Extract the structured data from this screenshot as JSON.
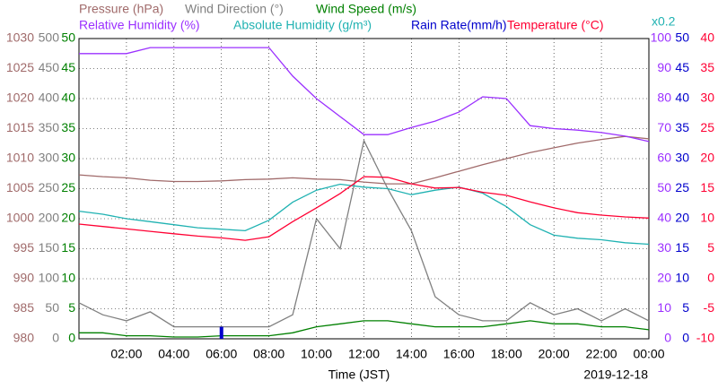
{
  "chart_data": {
    "type": "line",
    "x_label": "Time (JST)",
    "date": "2019-12-18",
    "annotations": [
      "x0.2"
    ],
    "grid": true,
    "x": [
      "00:00",
      "01:00",
      "02:00",
      "03:00",
      "04:00",
      "05:00",
      "06:00",
      "07:00",
      "08:00",
      "09:00",
      "10:00",
      "11:00",
      "12:00",
      "13:00",
      "14:00",
      "15:00",
      "16:00",
      "17:00",
      "18:00",
      "19:00",
      "20:00",
      "21:00",
      "22:00",
      "23:00",
      "00:00"
    ],
    "xticks": [
      "02:00",
      "04:00",
      "06:00",
      "08:00",
      "10:00",
      "12:00",
      "14:00",
      "16:00",
      "18:00",
      "20:00",
      "22:00",
      "00:00"
    ],
    "series": [
      {
        "name": "Pressure (hPa)",
        "color": "#a06a6a",
        "ylim": [
          980,
          1030
        ],
        "yticks": [
          980,
          985,
          990,
          995,
          1000,
          1005,
          1010,
          1015,
          1020,
          1025,
          1030
        ],
        "values": [
          1007.3,
          1007.0,
          1006.8,
          1006.4,
          1006.2,
          1006.2,
          1006.3,
          1006.5,
          1006.6,
          1006.8,
          1006.6,
          1006.5,
          1006.1,
          1005.8,
          1005.8,
          1006.8,
          1007.9,
          1009.0,
          1010.0,
          1011.0,
          1011.8,
          1012.6,
          1013.2,
          1013.7,
          1013.3
        ]
      },
      {
        "name": "Wind Direction (°)",
        "color": "#808080",
        "ylim": [
          0,
          500
        ],
        "yticks": [
          0,
          50,
          100,
          150,
          200,
          250,
          300,
          350,
          400,
          450,
          500
        ],
        "values": [
          60,
          40,
          30,
          45,
          20,
          20,
          20,
          20,
          20,
          40,
          200,
          150,
          330,
          250,
          180,
          70,
          40,
          30,
          30,
          60,
          40,
          50,
          30,
          50,
          30
        ]
      },
      {
        "name": "Wind Speed (m/s)",
        "color": "#008000",
        "ylim": [
          0,
          50
        ],
        "yticks": [
          0,
          5,
          10,
          15,
          20,
          25,
          30,
          35,
          40,
          45,
          50
        ],
        "values": [
          1,
          1,
          0.5,
          0.5,
          0.3,
          0.3,
          0.5,
          0.5,
          0.5,
          1,
          2,
          2.5,
          3,
          3,
          2.5,
          2,
          2,
          2,
          2.5,
          3,
          2.5,
          2.5,
          2,
          2,
          1.5
        ]
      },
      {
        "name": "Relative Humidity (%)",
        "color": "#9b30ff",
        "ylim": [
          0,
          100
        ],
        "yticks": [
          0,
          10,
          20,
          30,
          40,
          50,
          60,
          70,
          80,
          90,
          100
        ],
        "values": [
          95,
          95,
          95,
          97,
          97,
          97,
          97,
          97,
          97,
          87.5,
          80,
          74,
          68,
          68,
          70.4,
          72.5,
          75.5,
          80.6,
          80,
          71,
          70,
          69.5,
          68.7,
          67.5,
          65.7
        ]
      },
      {
        "name": "Absolute Humidity (g/m³)",
        "color": "#20b2b2",
        "ylim": [
          0,
          20
        ],
        "values": [
          8.5,
          8.3,
          8.0,
          7.8,
          7.6,
          7.4,
          7.3,
          7.2,
          7.9,
          9.1,
          9.9,
          10.3,
          10.1,
          10.0,
          9.6,
          9.9,
          10.1,
          9.7,
          8.8,
          7.6,
          6.9,
          6.7,
          6.6,
          6.4,
          6.3
        ]
      },
      {
        "name": "Rain Rate(mm/h)",
        "color": "#0000cc",
        "type": "bar",
        "ylim": [
          0,
          50
        ],
        "yticks": [
          0,
          5,
          10,
          15,
          20,
          25,
          30,
          35,
          40,
          45,
          50
        ],
        "values": [
          0,
          0,
          0,
          0,
          0,
          0,
          2,
          0,
          0,
          0,
          0,
          0,
          0,
          0,
          0,
          0,
          0,
          0,
          0,
          0,
          0,
          0,
          0,
          0,
          0
        ]
      },
      {
        "name": "Temperature (°C)",
        "color": "#ff0033",
        "ylim": [
          -10,
          40
        ],
        "yticks": [
          -10,
          -5,
          0,
          5,
          10,
          15,
          20,
          25,
          30,
          35,
          40
        ],
        "values": [
          9.1,
          8.7,
          8.3,
          7.9,
          7.5,
          7.1,
          6.8,
          6.4,
          7.0,
          9.5,
          11.8,
          14.2,
          17.0,
          16.9,
          15.8,
          15.1,
          15.2,
          14.4,
          13.9,
          12.8,
          11.8,
          11.0,
          10.6,
          10.3,
          10.1
        ]
      }
    ]
  }
}
